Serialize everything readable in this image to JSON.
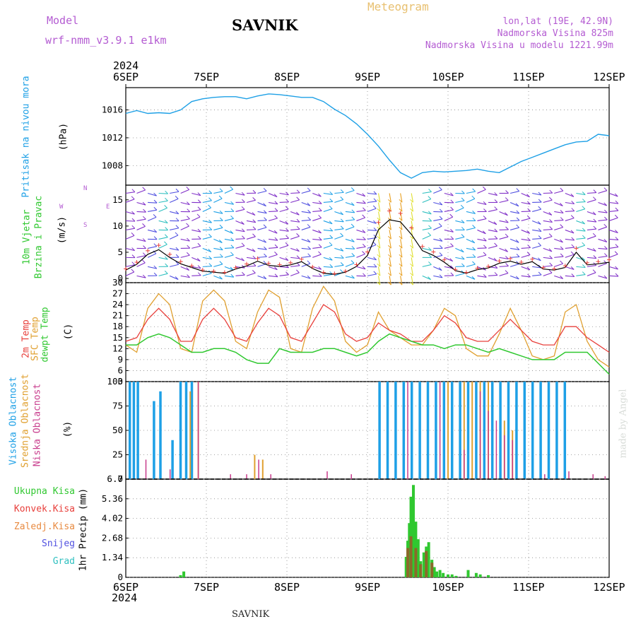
{
  "header": {
    "model_label": "Model",
    "model_name": "wrf-nmm_v3.9.1  e1km",
    "station": "SAVNIK",
    "meteogram": "Meteogram",
    "lonlat": "lon,lat (19E, 42.9N)",
    "altitude": "Nadmorska Visina 825m",
    "model_altitude": "Nadmorska Visina u modelu 1221.99m",
    "year_top": "2024",
    "year_bottom": "2024",
    "footer_station": "SAVNIK",
    "credit": "made by Angel"
  },
  "colors": {
    "pressure": "#1ea0e6",
    "temp": "#e8403c",
    "sfc_temp": "#e0a030",
    "dewpt": "#30c830",
    "high_cloud": "#1ea0e6",
    "mid_cloud": "#e0a030",
    "low_cloud": "#c83c8c",
    "rain_total": "#30c830",
    "rain_conv": "#e8403c",
    "wind_legend": "#a040c8"
  },
  "panels": {
    "pressure": {
      "label": "Pritisak na nivou mora",
      "unit": "(hPa)"
    },
    "wind": {
      "label1": "10m Vjetar",
      "label2": "Brzina i Pravac",
      "unit": "(m/s)",
      "compass_n": "N",
      "compass_s": "S",
      "compass_w": "W",
      "compass_e": "E"
    },
    "temp": {
      "l1": "2m Temp",
      "l2": "SFC Temp",
      "l3": "dewpt Temp",
      "unit": "(C)"
    },
    "cloud": {
      "l1": "Visoka Oblacnost",
      "l2": "Srednja Oblacnost",
      "l3": "Niska Oblacnost",
      "unit": "(%)"
    },
    "precip": {
      "l1": "Ukupna Kisa",
      "l2": "Konvek.Kisa",
      "l3": "Zaledj.Kisa",
      "l4": "Snijeg",
      "l5": "Grad",
      "unit": "1hr Precip (mm)"
    }
  },
  "chart_data": [
    {
      "type": "line",
      "name": "pressure",
      "x_ticks": [
        "6SEP",
        "7SEP",
        "8SEP",
        "9SEP",
        "10SEP",
        "11SEP",
        "12SEP"
      ],
      "y_ticks": [
        "1008",
        "1012",
        "1016"
      ],
      "ylim": [
        1005.2,
        1019.2
      ],
      "grid": true,
      "series": [
        {
          "name": "Pritisak na nivou mora",
          "values": [
            1015.5,
            1015.9,
            1015.5,
            1015.6,
            1015.5,
            1016.0,
            1017.2,
            1017.6,
            1017.8,
            1017.9,
            1017.9,
            1017.6,
            1018.0,
            1018.3,
            1018.2,
            1018.0,
            1017.8,
            1017.8,
            1017.2,
            1016.1,
            1015.2,
            1014.0,
            1012.5,
            1010.8,
            1008.8,
            1007.0,
            1006.2,
            1007.0,
            1007.2,
            1007.1,
            1007.2,
            1007.3,
            1007.5,
            1007.2,
            1007.0,
            1007.8,
            1008.6,
            1009.2,
            1009.8,
            1010.4,
            1011.0,
            1011.4,
            1011.5,
            1012.5,
            1012.3
          ]
        }
      ]
    },
    {
      "type": "line",
      "name": "wind",
      "x_ticks": [
        "6SEP",
        "7SEP",
        "8SEP",
        "9SEP",
        "10SEP",
        "11SEP",
        "12SEP"
      ],
      "y_ticks": [
        "0",
        "5",
        "10",
        "15"
      ],
      "ylim": [
        -0.8,
        17.8
      ],
      "series": [
        {
          "name": "10m Vjetar",
          "values": [
            1.6,
            2.7,
            4.6,
            5.5,
            4.0,
            2.8,
            2.1,
            1.4,
            1.2,
            1.0,
            1.8,
            2.4,
            3.3,
            2.5,
            2.3,
            2.6,
            3.2,
            1.9,
            1.0,
            0.8,
            1.2,
            2.3,
            4.4,
            9.3,
            11.2,
            10.8,
            8.4,
            5.3,
            4.4,
            3.1,
            1.5,
            1.0,
            1.7,
            2.0,
            2.9,
            3.3,
            2.7,
            3.2,
            1.8,
            1.6,
            2.1,
            5.0,
            2.6,
            2.8,
            3.1
          ]
        }
      ]
    },
    {
      "type": "line",
      "name": "temperature",
      "x_ticks": [
        "6SEP",
        "7SEP",
        "8SEP",
        "9SEP",
        "10SEP",
        "11SEP",
        "12SEP"
      ],
      "y_ticks": [
        "3",
        "6",
        "9",
        "12",
        "15",
        "18",
        "21",
        "24",
        "27",
        "30"
      ],
      "ylim": [
        3,
        30
      ],
      "series": [
        {
          "name": "2m Temp",
          "values": [
            14,
            15,
            20,
            23,
            20,
            14,
            14,
            20,
            23,
            20,
            15,
            14,
            19,
            23,
            21,
            15,
            14,
            19,
            24,
            22,
            16,
            14,
            15,
            19,
            17,
            16,
            14,
            14,
            17,
            21,
            19,
            15,
            14,
            14,
            17,
            20,
            17,
            14,
            13,
            13,
            18,
            18,
            15,
            13,
            11
          ]
        },
        {
          "name": "SFC Temp",
          "values": [
            13,
            11,
            23,
            27,
            24,
            12,
            11,
            25,
            28,
            25,
            14,
            12,
            22,
            28,
            26,
            12,
            11,
            23,
            29,
            25,
            14,
            11,
            13,
            22,
            17,
            15,
            13,
            13,
            17,
            23,
            21,
            12,
            10,
            10,
            16,
            23,
            17,
            10,
            9,
            10,
            22,
            24,
            14,
            9,
            7
          ]
        },
        {
          "name": "dewpt Temp",
          "values": [
            13,
            13,
            15,
            16,
            15,
            13,
            11,
            11,
            12,
            12,
            11,
            9,
            8,
            8,
            12,
            11,
            11,
            11,
            12,
            12,
            11,
            10,
            11,
            14,
            16,
            15,
            14,
            13,
            13,
            12,
            13,
            13,
            12,
            11,
            12,
            11,
            10,
            9,
            9,
            9,
            11,
            11,
            11,
            8,
            5
          ]
        }
      ]
    },
    {
      "type": "bar",
      "name": "cloud",
      "x_ticks": [
        "6SEP",
        "7SEP",
        "8SEP",
        "9SEP",
        "10SEP",
        "11SEP",
        "12SEP"
      ],
      "y_ticks": [
        "0",
        "25",
        "50",
        "75",
        "100"
      ],
      "ylim": [
        0,
        100
      ],
      "series": [
        {
          "name": "Visoka Oblacnost",
          "x": [
            0.05,
            0.1,
            0.15,
            0.35,
            0.43,
            0.58,
            0.68,
            0.75,
            0.82,
            3.15,
            3.25,
            3.35,
            3.45,
            3.55,
            3.65,
            3.75,
            3.85,
            3.95,
            4.05,
            4.15,
            4.25,
            4.35,
            4.45,
            4.55,
            4.65,
            4.75,
            4.85,
            4.95,
            5.05,
            5.15,
            5.25,
            5.35,
            5.45
          ],
          "values": [
            100,
            100,
            100,
            80,
            90,
            40,
            100,
            100,
            100,
            100,
            100,
            100,
            100,
            100,
            100,
            100,
            100,
            100,
            100,
            100,
            100,
            100,
            100,
            100,
            100,
            100,
            100,
            100,
            100,
            100,
            100,
            100,
            100
          ]
        },
        {
          "name": "Srednja Oblacnost",
          "x": [
            0.8,
            0.9,
            1.6,
            1.7,
            4.0,
            4.2,
            4.3,
            4.4,
            4.5,
            4.7,
            4.8
          ],
          "values": [
            90,
            100,
            25,
            20,
            100,
            100,
            100,
            100,
            100,
            60,
            50
          ]
        },
        {
          "name": "Niska Oblacnost",
          "x": [
            0.25,
            0.55,
            0.9,
            1.3,
            1.5,
            1.65,
            1.8,
            2.5,
            2.8,
            3.5,
            3.9,
            4.2,
            4.4,
            4.5,
            4.6,
            4.7,
            4.8,
            5.2,
            5.5,
            5.8,
            5.95
          ],
          "values": [
            20,
            10,
            100,
            5,
            5,
            20,
            5,
            8,
            5,
            100,
            100,
            30,
            90,
            70,
            60,
            45,
            40,
            5,
            8,
            5,
            3
          ]
        }
      ]
    },
    {
      "type": "bar",
      "name": "precipitation",
      "x_ticks": [
        "6SEP",
        "7SEP",
        "8SEP",
        "9SEP",
        "10SEP",
        "11SEP",
        "12SEP"
      ],
      "y_ticks": [
        "0",
        "1.34",
        "2.68",
        "4.02",
        "5.36",
        "6.7"
      ],
      "ylim": [
        0,
        6.7
      ],
      "series": [
        {
          "name": "Ukupna Kisa",
          "x": [
            0.68,
            0.72,
            3.48,
            3.5,
            3.52,
            3.54,
            3.57,
            3.6,
            3.63,
            3.66,
            3.7,
            3.73,
            3.76,
            3.8,
            3.83,
            3.86,
            3.9,
            3.94,
            4.0,
            4.05,
            4.1,
            4.25,
            4.35,
            4.4,
            4.5
          ],
          "values": [
            0.15,
            0.4,
            1.4,
            2.5,
            3.7,
            5.5,
            6.3,
            3.8,
            2.6,
            1.1,
            1.7,
            2.1,
            2.4,
            1.2,
            0.7,
            0.4,
            0.5,
            0.3,
            0.2,
            0.2,
            0.1,
            0.5,
            0.3,
            0.2,
            0.15
          ]
        },
        {
          "name": "Konvek.Kisa",
          "x": [
            3.5,
            3.54,
            3.6,
            3.66,
            3.73,
            3.8
          ],
          "values": [
            2.0,
            2.8,
            2.0,
            0.9,
            1.8,
            1.0
          ]
        }
      ]
    }
  ]
}
